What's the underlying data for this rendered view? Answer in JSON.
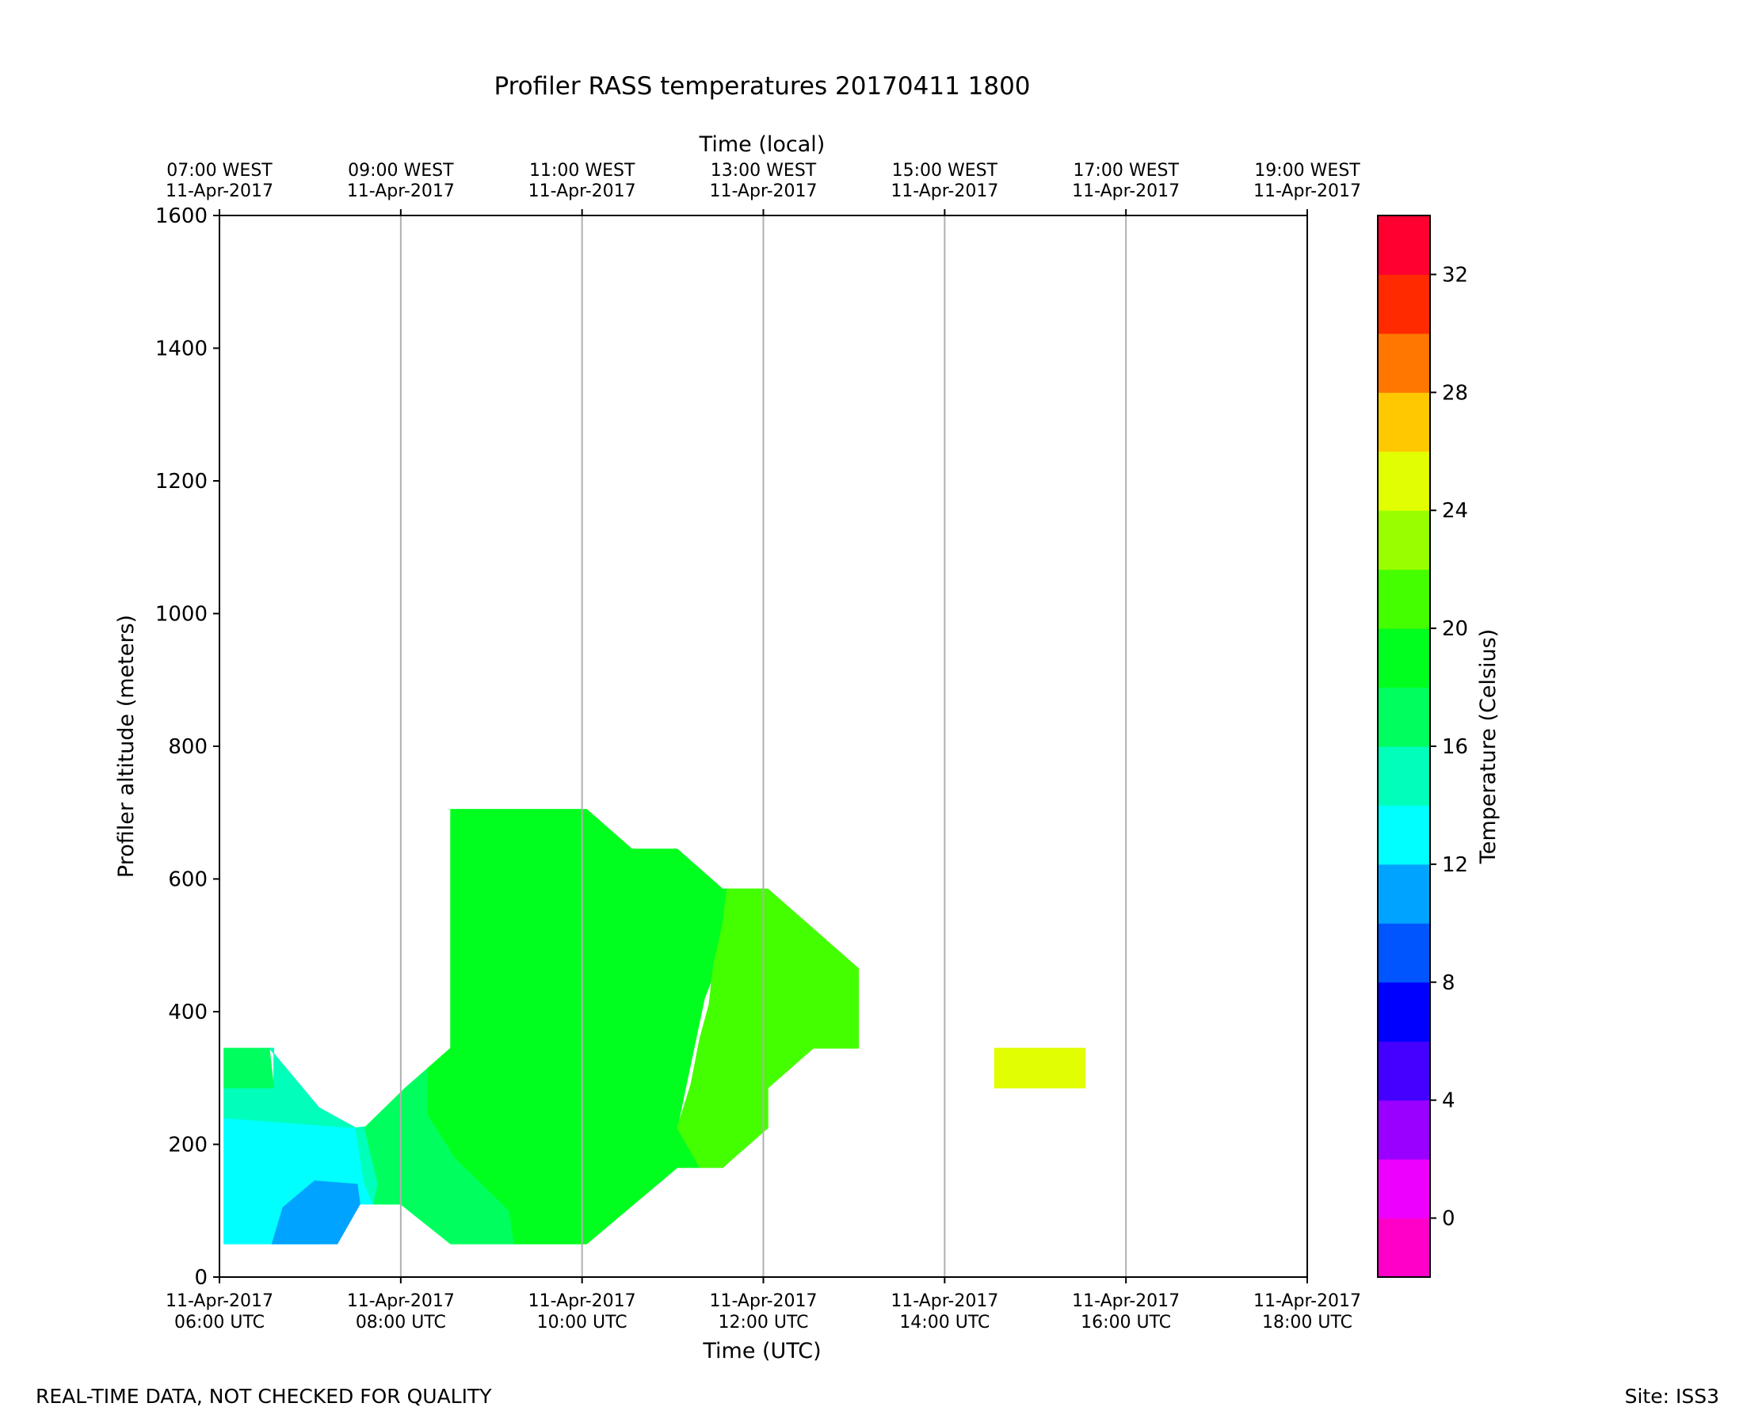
{
  "chart_data": {
    "type": "heatmap",
    "title": "Profiler RASS temperatures 20170411 1800",
    "xlabel": "Time (UTC)",
    "x2label": "Time (local)",
    "ylabel": "Profiler altitude (meters)",
    "colorbar_label": "Temperature (Celsius)",
    "xlim_hours_utc": [
      6,
      18
    ],
    "ylim": [
      0,
      1600
    ],
    "yticks": [
      0,
      200,
      400,
      600,
      800,
      1000,
      1200,
      1400,
      1600
    ],
    "bottom_ticks": [
      {
        "x": 6,
        "line1": "11-Apr-2017",
        "line2": "06:00 UTC"
      },
      {
        "x": 8,
        "line1": "11-Apr-2017",
        "line2": "08:00 UTC"
      },
      {
        "x": 10,
        "line1": "11-Apr-2017",
        "line2": "10:00 UTC"
      },
      {
        "x": 12,
        "line1": "11-Apr-2017",
        "line2": "12:00 UTC"
      },
      {
        "x": 14,
        "line1": "11-Apr-2017",
        "line2": "14:00 UTC"
      },
      {
        "x": 16,
        "line1": "11-Apr-2017",
        "line2": "16:00 UTC"
      },
      {
        "x": 18,
        "line1": "11-Apr-2017",
        "line2": "18:00 UTC"
      }
    ],
    "top_ticks": [
      {
        "x": 6,
        "line1": "07:00 WEST",
        "line2": "11-Apr-2017"
      },
      {
        "x": 8,
        "line1": "09:00 WEST",
        "line2": "11-Apr-2017"
      },
      {
        "x": 10,
        "line1": "11:00 WEST",
        "line2": "11-Apr-2017"
      },
      {
        "x": 12,
        "line1": "13:00 WEST",
        "line2": "11-Apr-2017"
      },
      {
        "x": 14,
        "line1": "15:00 WEST",
        "line2": "11-Apr-2017"
      },
      {
        "x": 16,
        "line1": "17:00 WEST",
        "line2": "11-Apr-2017"
      },
      {
        "x": 18,
        "line1": "19:00 WEST",
        "line2": "11-Apr-2017"
      }
    ],
    "vertical_grid": true,
    "colorbar": {
      "range": [
        -2,
        34
      ],
      "step": 2,
      "ticks": [
        0,
        4,
        8,
        12,
        16,
        20,
        24,
        28,
        32
      ],
      "colors": [
        "#ff00c8",
        "#ee00ff",
        "#9900ff",
        "#4400ff",
        "#0000ff",
        "#0055ff",
        "#00a3ff",
        "#00ffff",
        "#00ffbb",
        "#00ff5e",
        "#00ff1f",
        "#44ff00",
        "#99ff00",
        "#e1ff00",
        "#ffc800",
        "#ff7700",
        "#ff2a00",
        "#ff0030"
      ]
    },
    "regions": [
      {
        "name": "cyan-12-14",
        "level": 12,
        "color": "#00ffff",
        "points": [
          [
            6.05,
            50
          ],
          [
            6.05,
            240
          ],
          [
            7.1,
            255
          ],
          [
            7.5,
            225
          ],
          [
            7.7,
            110
          ],
          [
            7.5,
            110
          ],
          [
            7.1,
            50
          ]
        ]
      },
      {
        "name": "blue-10-12",
        "level": 10,
        "color": "#00a3ff",
        "points": [
          [
            6.58,
            50
          ],
          [
            6.7,
            105
          ],
          [
            7.05,
            145
          ],
          [
            7.52,
            140
          ],
          [
            7.55,
            110
          ],
          [
            7.3,
            50
          ]
        ]
      },
      {
        "name": "aqua-14-16",
        "level": 14,
        "color": "#00ffbb",
        "points": [
          [
            6.05,
            240
          ],
          [
            6.05,
            285
          ],
          [
            6.6,
            285
          ],
          [
            6.6,
            345
          ],
          [
            6.55,
            345
          ],
          [
            7.1,
            255
          ],
          [
            7.5,
            225
          ],
          [
            7.6,
            140
          ],
          [
            7.7,
            110
          ],
          [
            8.0,
            110
          ],
          [
            7.85,
            230
          ],
          [
            7.5,
            225
          ]
        ]
      },
      {
        "name": "spring-16-18-left",
        "level": 16,
        "color": "#00ff5e",
        "points": [
          [
            6.05,
            285
          ],
          [
            6.05,
            345
          ],
          [
            6.55,
            345
          ],
          [
            6.6,
            285
          ]
        ]
      },
      {
        "name": "spring-16-18-mid",
        "level": 16,
        "color": "#00ff5e",
        "points": [
          [
            7.6,
            225
          ],
          [
            8.05,
            285
          ],
          [
            8.3,
            315
          ],
          [
            8.55,
            345
          ],
          [
            8.55,
            240
          ],
          [
            8.5,
            200
          ],
          [
            8.6,
            180
          ],
          [
            9.2,
            100
          ],
          [
            9.25,
            50
          ],
          [
            8.55,
            50
          ],
          [
            8.0,
            110
          ],
          [
            7.7,
            110
          ],
          [
            7.75,
            140
          ]
        ]
      },
      {
        "name": "green-18-20",
        "level": 18,
        "color": "#00ff1f",
        "points": [
          [
            8.55,
            705
          ],
          [
            10.05,
            705
          ],
          [
            10.55,
            645
          ],
          [
            11.05,
            645
          ],
          [
            11.55,
            585
          ],
          [
            12.0,
            585
          ],
          [
            11.55,
            490
          ],
          [
            11.35,
            420
          ],
          [
            11.15,
            290
          ],
          [
            11.05,
            225
          ],
          [
            11.3,
            165
          ],
          [
            11.05,
            165
          ],
          [
            10.05,
            50
          ],
          [
            9.25,
            50
          ],
          [
            9.2,
            100
          ],
          [
            8.6,
            180
          ],
          [
            8.3,
            245
          ],
          [
            8.3,
            315
          ],
          [
            8.55,
            345
          ]
        ]
      },
      {
        "name": "lime-20-22",
        "level": 20,
        "color": "#44ff00",
        "points": [
          [
            11.6,
            585
          ],
          [
            12.05,
            585
          ],
          [
            13.05,
            465
          ],
          [
            13.05,
            345
          ],
          [
            12.55,
            345
          ],
          [
            12.05,
            285
          ],
          [
            12.05,
            225
          ],
          [
            11.55,
            165
          ],
          [
            11.3,
            165
          ],
          [
            11.05,
            225
          ],
          [
            11.2,
            290
          ],
          [
            11.3,
            360
          ],
          [
            11.4,
            410
          ],
          [
            11.45,
            470
          ],
          [
            11.55,
            530
          ]
        ]
      },
      {
        "name": "yellow-24-26",
        "level": 24,
        "color": "#e1ff00",
        "points": [
          [
            14.55,
            285
          ],
          [
            14.55,
            345
          ],
          [
            15.55,
            345
          ],
          [
            15.55,
            285
          ]
        ]
      }
    ]
  },
  "footer": {
    "left": "REAL-TIME DATA, NOT CHECKED FOR QUALITY",
    "right": "Site: ISS3"
  }
}
